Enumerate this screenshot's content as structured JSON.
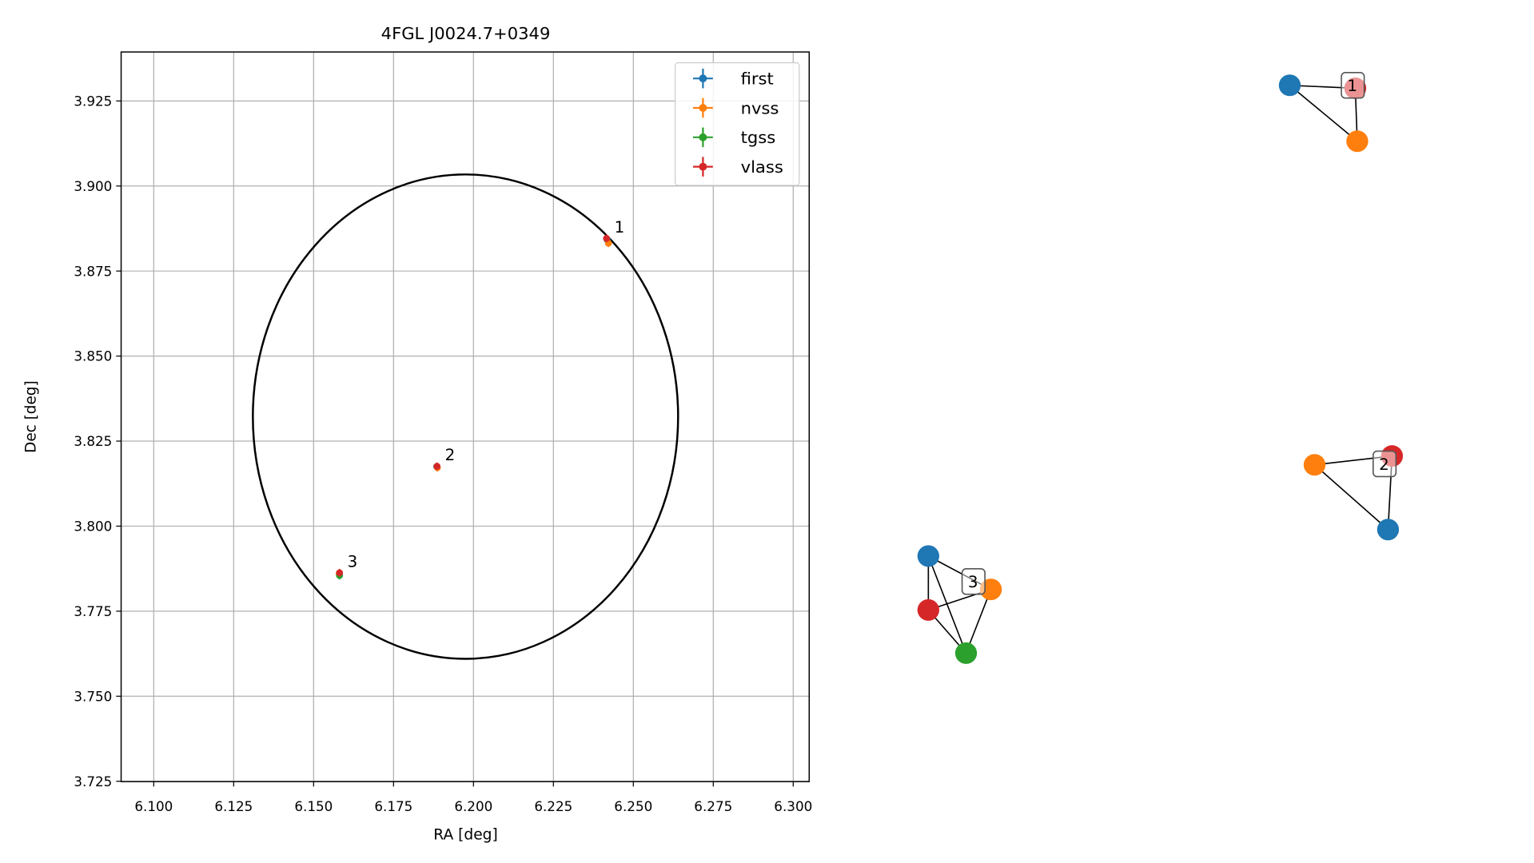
{
  "chart_data": {
    "type": "scatter",
    "title": "4FGL J0024.7+0349",
    "xlabel": "RA [deg]",
    "ylabel": "Dec [deg]",
    "xlim": [
      6.0898,
      6.305
    ],
    "ylim": [
      3.7249,
      3.9394
    ],
    "xticks": [
      {
        "value": 6.1,
        "label": "6.100"
      },
      {
        "value": 6.125,
        "label": "6.125"
      },
      {
        "value": 6.15,
        "label": "6.150"
      },
      {
        "value": 6.175,
        "label": "6.175"
      },
      {
        "value": 6.2,
        "label": "6.200"
      },
      {
        "value": 6.225,
        "label": "6.225"
      },
      {
        "value": 6.25,
        "label": "6.250"
      },
      {
        "value": 6.275,
        "label": "6.275"
      },
      {
        "value": 6.3,
        "label": "6.300"
      }
    ],
    "yticks": [
      {
        "value": 3.725,
        "label": "3.725"
      },
      {
        "value": 3.75,
        "label": "3.750"
      },
      {
        "value": 3.775,
        "label": "3.775"
      },
      {
        "value": 3.8,
        "label": "3.800"
      },
      {
        "value": 3.825,
        "label": "3.825"
      },
      {
        "value": 3.85,
        "label": "3.850"
      },
      {
        "value": 3.875,
        "label": "3.875"
      },
      {
        "value": 3.9,
        "label": "3.900"
      },
      {
        "value": 3.925,
        "label": "3.925"
      }
    ],
    "grid": true,
    "legend": "upper right",
    "series": [
      {
        "name": "first",
        "color": "#1f77b4",
        "x": [
          6.2418,
          6.1885,
          6.1581
        ],
        "values": [
          3.8842,
          3.8175,
          3.7862
        ]
      },
      {
        "name": "nvss",
        "color": "#ff7f0e",
        "x": [
          6.2422,
          6.1887,
          6.158
        ],
        "values": [
          3.8832,
          3.8172,
          3.786
        ]
      },
      {
        "name": "tgss",
        "color": "#2ca02c",
        "x": [
          6.1581
        ],
        "values": [
          3.7855
        ]
      },
      {
        "name": "vlass",
        "color": "#d62728",
        "x": [
          6.2416,
          6.1886,
          6.1581
        ],
        "values": [
          3.8846,
          3.8176,
          3.7863
        ]
      }
    ],
    "ellipse": {
      "center": [
        6.1975,
        3.8322
      ],
      "semi_axes": [
        0.0665,
        0.0712
      ]
    },
    "annotations": [
      {
        "text": "1",
        "x": 6.2416,
        "y": 3.8846
      },
      {
        "text": "2",
        "x": 6.1886,
        "y": 3.8176
      },
      {
        "text": "3",
        "x": 6.1581,
        "y": 3.7863
      }
    ]
  },
  "graph": {
    "labels": [
      "1",
      "2",
      "3"
    ]
  }
}
